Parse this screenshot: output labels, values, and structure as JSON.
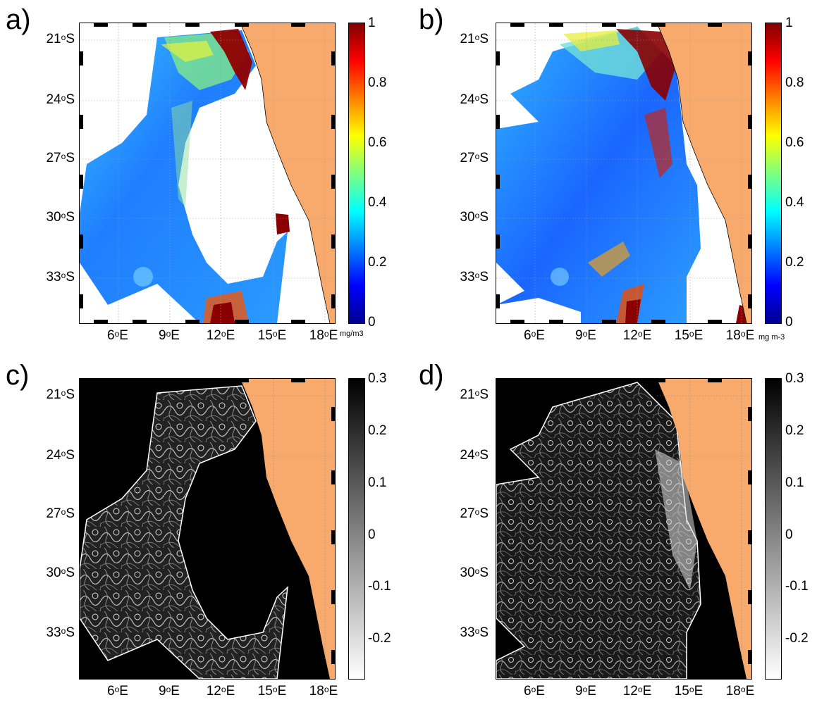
{
  "colors": {
    "land": "#f8aa6d",
    "nodata_top": "#ffffff",
    "nodata_bottom": "#000000",
    "jet": [
      "#00008f",
      "#0000ff",
      "#0080ff",
      "#00ffff",
      "#80ff80",
      "#ffff00",
      "#ff8000",
      "#ff0000",
      "#800000"
    ]
  },
  "panels": [
    {
      "id": "a",
      "label": "a)",
      "colormap": "jet",
      "unit": "mg/m3",
      "cbar_ticks": [
        "1",
        "0.8",
        "0.6",
        "0.4",
        "0.2",
        "0"
      ],
      "lat_ticks": [
        {
          "deg": "21",
          "hem": "S"
        },
        {
          "deg": "24",
          "hem": "S"
        },
        {
          "deg": "27",
          "hem": "S"
        },
        {
          "deg": "30",
          "hem": "S"
        },
        {
          "deg": "33",
          "hem": "S"
        }
      ],
      "lon_ticks": [
        {
          "deg": "6",
          "hem": "E"
        },
        {
          "deg": "9",
          "hem": "E"
        },
        {
          "deg": "12",
          "hem": "E"
        },
        {
          "deg": "15",
          "hem": "E"
        },
        {
          "deg": "18",
          "hem": "E"
        }
      ]
    },
    {
      "id": "b",
      "label": "b)",
      "colormap": "jet",
      "unit": "mg m-3",
      "cbar_ticks": [
        "1",
        "0.8",
        "0.6",
        "0.4",
        "0.2",
        "0"
      ],
      "lat_ticks": [
        {
          "deg": "21",
          "hem": "S"
        },
        {
          "deg": "24",
          "hem": "S"
        },
        {
          "deg": "27",
          "hem": "S"
        },
        {
          "deg": "30",
          "hem": "S"
        },
        {
          "deg": "33",
          "hem": "S"
        }
      ],
      "lon_ticks": [
        {
          "deg": "6",
          "hem": "E"
        },
        {
          "deg": "9",
          "hem": "E"
        },
        {
          "deg": "12",
          "hem": "E"
        },
        {
          "deg": "15",
          "hem": "E"
        },
        {
          "deg": "18",
          "hem": "E"
        }
      ]
    },
    {
      "id": "c",
      "label": "c)",
      "colormap": "gray",
      "unit": "",
      "cbar_ticks": [
        "0.3",
        "0.2",
        "0.1",
        "0",
        "-0.1",
        "-0.2"
      ],
      "lat_ticks": [
        {
          "deg": "21",
          "hem": "S"
        },
        {
          "deg": "24",
          "hem": "S"
        },
        {
          "deg": "27",
          "hem": "S"
        },
        {
          "deg": "30",
          "hem": "S"
        },
        {
          "deg": "33",
          "hem": "S"
        }
      ],
      "lon_ticks": [
        {
          "deg": "6",
          "hem": "E"
        },
        {
          "deg": "9",
          "hem": "E"
        },
        {
          "deg": "12",
          "hem": "E"
        },
        {
          "deg": "15",
          "hem": "E"
        },
        {
          "deg": "18",
          "hem": "E"
        }
      ]
    },
    {
      "id": "d",
      "label": "d)",
      "colormap": "gray",
      "unit": "",
      "cbar_ticks": [
        "0.3",
        "0.2",
        "0.1",
        "0",
        "-0.1",
        "-0.2"
      ],
      "lat_ticks": [
        {
          "deg": "21",
          "hem": "S"
        },
        {
          "deg": "24",
          "hem": "S"
        },
        {
          "deg": "27",
          "hem": "S"
        },
        {
          "deg": "30",
          "hem": "S"
        },
        {
          "deg": "33",
          "hem": "S"
        }
      ],
      "lon_ticks": [
        {
          "deg": "6",
          "hem": "E"
        },
        {
          "deg": "9",
          "hem": "E"
        },
        {
          "deg": "12",
          "hem": "E"
        },
        {
          "deg": "15",
          "hem": "E"
        },
        {
          "deg": "18",
          "hem": "E"
        }
      ]
    }
  ]
}
